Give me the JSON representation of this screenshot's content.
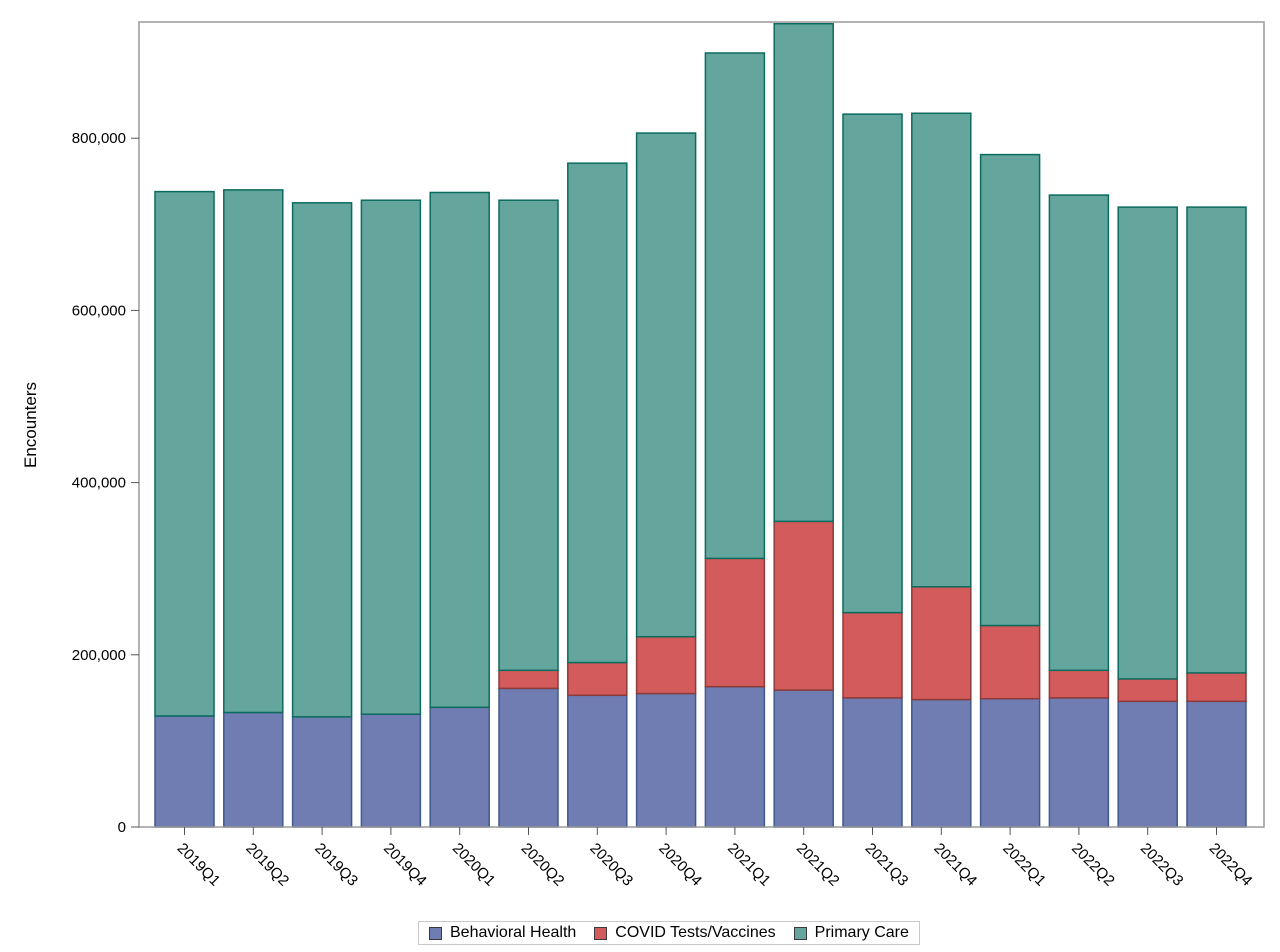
{
  "chart_data": {
    "type": "bar",
    "stacked": true,
    "ylabel": "Encounters",
    "xlabel": "",
    "ylim": [
      0,
      935000
    ],
    "yticks": [
      0,
      200000,
      400000,
      600000,
      800000
    ],
    "ytick_labels": [
      "0",
      "200,000",
      "400,000",
      "600,000",
      "800,000"
    ],
    "grid": false,
    "legend_position": "bottom-center",
    "categories": [
      "2019Q1",
      "2019Q2",
      "2019Q3",
      "2019Q4",
      "2020Q1",
      "2020Q2",
      "2020Q3",
      "2020Q4",
      "2021Q1",
      "2021Q2",
      "2021Q3",
      "2021Q4",
      "2022Q1",
      "2022Q2",
      "2022Q3",
      "2022Q4"
    ],
    "series": [
      {
        "name": "Behavioral Health",
        "color": "#6f7db3",
        "edge": "#3f5a8a",
        "values": [
          129000,
          133000,
          128000,
          131000,
          139000,
          161000,
          153000,
          155000,
          163000,
          159000,
          150000,
          148000,
          149000,
          150000,
          146000,
          146000
        ]
      },
      {
        "name": "COVID Tests/Vaccines",
        "color": "#d35b5b",
        "edge": "#8c3a3a",
        "values": [
          0,
          0,
          0,
          0,
          0,
          21000,
          38000,
          66000,
          149000,
          196000,
          99000,
          131000,
          85000,
          32000,
          26000,
          33000
        ]
      },
      {
        "name": "Primary Care",
        "color": "#64a69e",
        "edge": "#0b6b5e",
        "values": [
          609000,
          607000,
          597000,
          597000,
          598000,
          546000,
          580000,
          585000,
          587000,
          578000,
          579000,
          550000,
          547000,
          552000,
          548000,
          541000
        ]
      }
    ]
  }
}
